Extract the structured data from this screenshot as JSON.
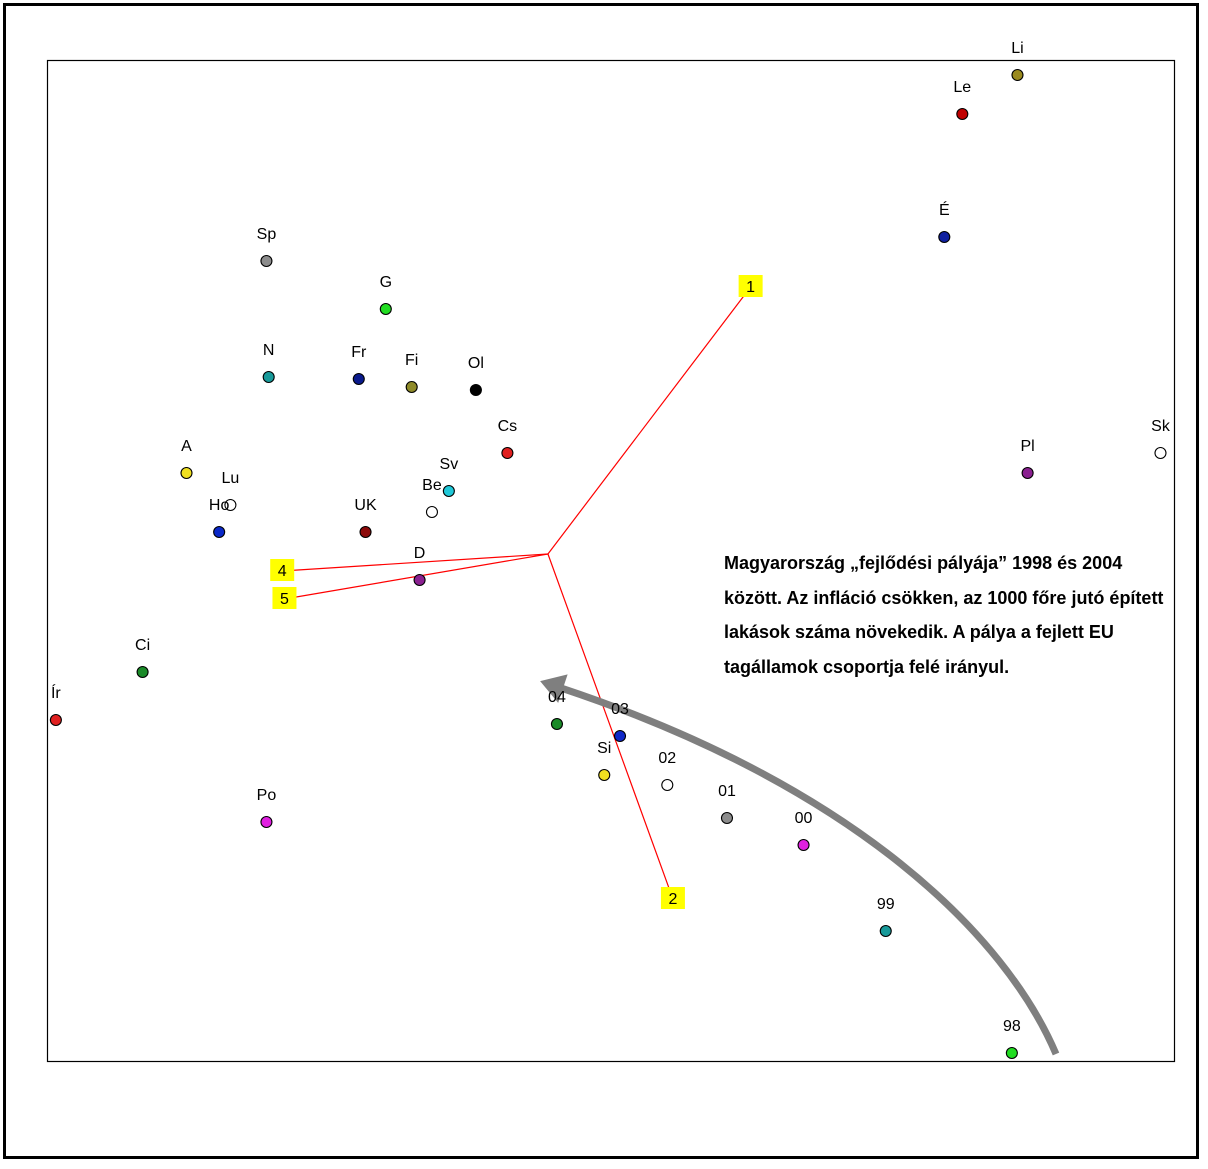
{
  "chart_data": {
    "type": "scatter",
    "title": "",
    "xlabel": "",
    "ylabel": "",
    "xlim": [
      0,
      100
    ],
    "ylim": [
      0,
      100
    ],
    "grid": false,
    "points": [
      {
        "label": "Li",
        "x": 86.1,
        "y": 98.6,
        "color": "#9a8a1e",
        "hollow": false
      },
      {
        "label": "Le",
        "x": 81.2,
        "y": 94.7,
        "color": "#c00000",
        "hollow": false
      },
      {
        "label": "É",
        "x": 79.6,
        "y": 82.4,
        "color": "#1020a0",
        "hollow": false
      },
      {
        "label": "Sp",
        "x": 19.4,
        "y": 80.0,
        "color": "#8c8c8c",
        "hollow": false
      },
      {
        "label": "G",
        "x": 30.0,
        "y": 75.2,
        "color": "#22dd22",
        "hollow": false
      },
      {
        "label": "N",
        "x": 19.6,
        "y": 68.4,
        "color": "#189a9a",
        "hollow": false
      },
      {
        "label": "Fr",
        "x": 27.6,
        "y": 68.2,
        "color": "#0a1a8c",
        "hollow": false
      },
      {
        "label": "Fi",
        "x": 32.3,
        "y": 67.4,
        "color": "#8e8a28",
        "hollow": false
      },
      {
        "label": "Ol",
        "x": 38.0,
        "y": 67.1,
        "color": "#000000",
        "hollow": false
      },
      {
        "label": "Cs",
        "x": 40.8,
        "y": 60.8,
        "color": "#e02020",
        "hollow": false
      },
      {
        "label": "Pl",
        "x": 87.0,
        "y": 58.8,
        "color": "#8a2090",
        "hollow": false
      },
      {
        "label": "Sk",
        "x": 98.8,
        "y": 60.8,
        "color": "#ffffff",
        "hollow": true
      },
      {
        "label": "A",
        "x": 12.3,
        "y": 58.8,
        "color": "#f0e020",
        "hollow": false
      },
      {
        "label": "Lu",
        "x": 16.2,
        "y": 55.6,
        "color": "#ffffff",
        "hollow": true
      },
      {
        "label": "Sv",
        "x": 35.6,
        "y": 57.0,
        "color": "#20c8d8",
        "hollow": false
      },
      {
        "label": "Be",
        "x": 34.1,
        "y": 54.9,
        "color": "#ffffff",
        "hollow": true
      },
      {
        "label": "Ho",
        "x": 15.2,
        "y": 52.9,
        "color": "#0a28c8",
        "hollow": false
      },
      {
        "label": "UK",
        "x": 28.2,
        "y": 52.9,
        "color": "#8c0a0a",
        "hollow": false
      },
      {
        "label": "D",
        "x": 33.0,
        "y": 48.1,
        "color": "#8a2090",
        "hollow": false
      },
      {
        "label": "Ci",
        "x": 8.4,
        "y": 38.9,
        "color": "#1a8a28",
        "hollow": false
      },
      {
        "label": "Ír",
        "x": 0.7,
        "y": 34.1,
        "color": "#e02020",
        "hollow": false
      },
      {
        "label": "04",
        "x": 45.2,
        "y": 33.7,
        "color": "#1a8a28",
        "hollow": false
      },
      {
        "label": "03",
        "x": 50.8,
        "y": 32.5,
        "color": "#1028c8",
        "hollow": false
      },
      {
        "label": "Si",
        "x": 49.4,
        "y": 28.6,
        "color": "#f0e020",
        "hollow": false
      },
      {
        "label": "02",
        "x": 55.0,
        "y": 27.6,
        "color": "#ffffff",
        "hollow": true
      },
      {
        "label": "01",
        "x": 60.3,
        "y": 24.3,
        "color": "#8c8c8c",
        "hollow": false
      },
      {
        "label": "00",
        "x": 67.1,
        "y": 21.6,
        "color": "#e020e0",
        "hollow": false
      },
      {
        "label": "Po",
        "x": 19.4,
        "y": 23.9,
        "color": "#e020e0",
        "hollow": false
      },
      {
        "label": "99",
        "x": 74.4,
        "y": 13.0,
        "color": "#189a9a",
        "hollow": false
      },
      {
        "label": "98",
        "x": 85.6,
        "y": 0.8,
        "color": "#22dd22",
        "hollow": false
      }
    ],
    "vector_origin": {
      "x": 44.4,
      "y": 50.7
    },
    "vectors": [
      {
        "label": "1",
        "x": 62.4,
        "y": 77.4
      },
      {
        "label": "2",
        "x": 55.5,
        "y": 16.2
      },
      {
        "label": "4",
        "x": 20.8,
        "y": 49.0
      },
      {
        "label": "5",
        "x": 21.0,
        "y": 46.2
      }
    ],
    "vector_color": "#ff0000",
    "vector_label_bg": "#ffff00",
    "arrow_color": "#7f7f7f",
    "annotation": "Magyarország „fejlődési pályája” 1998 és 2004 között. Az infláció csökken, az 1000 főre jutó épített lakások száma növekedik. A pálya a fejlett EU tagállamok csoportja felé irányul."
  }
}
